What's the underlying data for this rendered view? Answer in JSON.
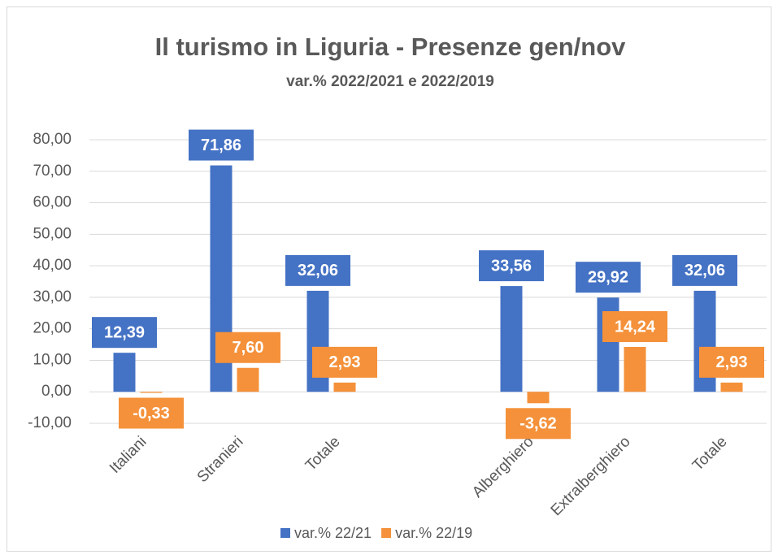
{
  "chart_data": {
    "type": "bar",
    "title": "Il turismo in Liguria - Presenze gen/nov",
    "subtitle": "var.% 2022/2021 e 2022/2019",
    "categories": [
      "Italiani",
      "Stranieri",
      "Totale",
      null,
      "Alberghiero",
      "Extralberghiero",
      "Totale"
    ],
    "series": [
      {
        "name": "var.% 22/21",
        "color": "#4472c4",
        "values": [
          12.39,
          71.86,
          32.06,
          null,
          33.56,
          29.92,
          32.06
        ],
        "value_labels": [
          "12,39",
          "71,86",
          "32,06",
          null,
          "33,56",
          "29,92",
          "32,06"
        ]
      },
      {
        "name": "var.% 22/19",
        "color": "#f4913a",
        "values": [
          -0.33,
          7.6,
          2.93,
          null,
          -3.62,
          14.24,
          2.93
        ],
        "value_labels": [
          "-0,33",
          "7,60",
          "2,93",
          null,
          "-3,62",
          "14,24",
          "2,93"
        ]
      }
    ],
    "ylim": [
      -10,
      80
    ],
    "yticks": [
      {
        "value": -10,
        "label": "-10,00"
      },
      {
        "value": 0,
        "label": "0,00"
      },
      {
        "value": 10,
        "label": "10,00"
      },
      {
        "value": 20,
        "label": "20,00"
      },
      {
        "value": 30,
        "label": "30,00"
      },
      {
        "value": 40,
        "label": "40,00"
      },
      {
        "value": 50,
        "label": "50,00"
      },
      {
        "value": 60,
        "label": "60,00"
      },
      {
        "value": 70,
        "label": "70,00"
      },
      {
        "value": 80,
        "label": "80,00"
      }
    ],
    "grid": true,
    "legend": "bottom"
  }
}
